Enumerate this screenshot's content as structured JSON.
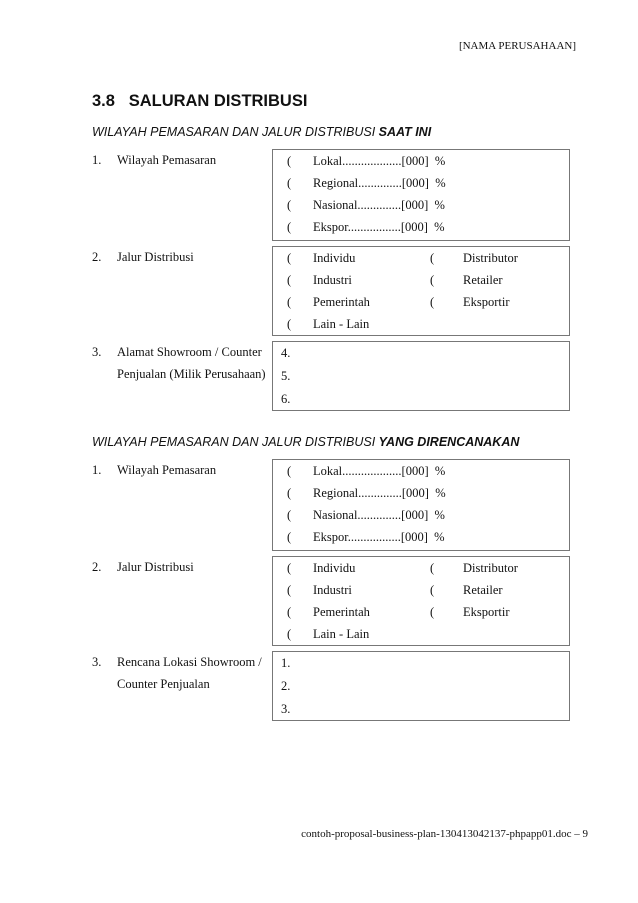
{
  "header": "[NAMA PERUSAHAAN]",
  "title": "3.8   SALURAN DISTRIBUSI",
  "sections": [
    {
      "subtitle_prefix": "WILAYAH PEMASARAN DAN JALUR DISTRIBUSI ",
      "subtitle_bold": "SAAT INI",
      "items": [
        {
          "num": "1.",
          "label": "Wilayah Pemasaran",
          "options": [
            "Lokal...................[000]  %",
            "Regional..............[000]  %",
            "Nasional..............[000]  %",
            "Ekspor.................[000]  %"
          ]
        },
        {
          "num": "2.",
          "label": "Jalur Distribusi",
          "left": [
            "Individu",
            "Industri",
            "Pemerintah",
            "Lain - Lain"
          ],
          "right": [
            "Distributor",
            "Retailer",
            "Eksportir"
          ]
        },
        {
          "num": "3.",
          "label1": "Alamat Showroom / Counter",
          "label2": "Penjualan (Milik Perusahaan)",
          "lines": [
            "4.",
            "5.",
            "6."
          ]
        }
      ]
    },
    {
      "subtitle_prefix": "WILAYAH PEMASARAN DAN JALUR DISTRIBUSI ",
      "subtitle_bold": "YANG DIRENCANAKAN",
      "items": [
        {
          "num": "1.",
          "label": "Wilayah Pemasaran",
          "options": [
            "Lokal...................[000]  %",
            "Regional..............[000]  %",
            "Nasional..............[000]  %",
            "Ekspor.................[000]  %"
          ]
        },
        {
          "num": "2.",
          "label": "Jalur Distribusi",
          "left": [
            "Individu",
            "Industri",
            "Pemerintah",
            "Lain - Lain"
          ],
          "right": [
            "Distributor",
            "Retailer",
            "Eksportir"
          ]
        },
        {
          "num": "3.",
          "label1": "Rencana Lokasi Showroom /",
          "label2": "Counter Penjualan",
          "lines": [
            "1.",
            "2.",
            "3."
          ]
        }
      ]
    }
  ],
  "checkbox_glyph": "(",
  "footer": "contoh-proposal-business-plan-130413042137-phpapp01.doc – 9"
}
